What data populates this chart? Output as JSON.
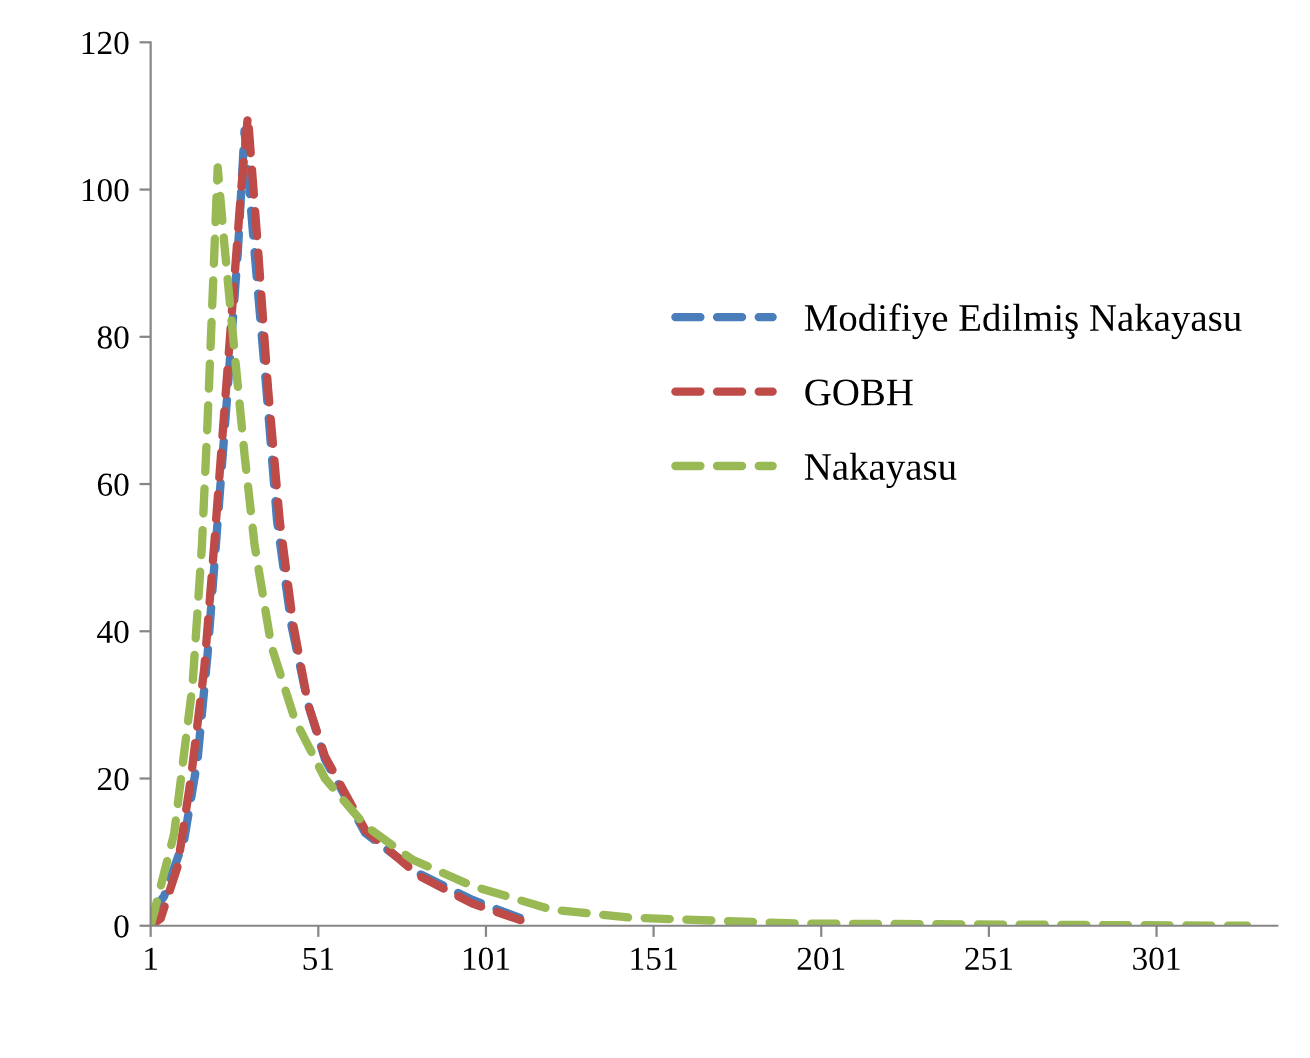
{
  "chart_data": {
    "type": "line",
    "line_style": "dashed",
    "marker": "none",
    "grid": false,
    "legend": "right",
    "xlim": [
      1,
      337
    ],
    "xticks": [
      1,
      51,
      101,
      151,
      201,
      251,
      301
    ],
    "ylim": [
      0,
      120
    ],
    "yticks": [
      0,
      20,
      40,
      60,
      80,
      100,
      120
    ],
    "series": [
      {
        "name": "Modifiye Edilmiş Nakayasu",
        "color": "#4a7ebb",
        "x": [
          1,
          5,
          11,
          15,
          18,
          21,
          24,
          27,
          29,
          32,
          35.5,
          38.7,
          43,
          48,
          53,
          65,
          81,
          97,
          115
        ],
        "values": [
          1.5,
          4,
          11.7,
          22.6,
          37,
          55,
          73,
          91.5,
          108,
          91.5,
          73,
          55,
          40.8,
          30,
          22.6,
          12.6,
          7.1,
          3.5,
          0.4
        ]
      },
      {
        "name": "GOBH",
        "color": "#be4b48",
        "x": [
          1,
          4,
          9,
          13,
          17,
          20,
          23,
          26,
          28,
          30,
          33,
          36,
          39.5,
          43.5,
          48,
          53,
          65,
          81,
          97,
          113
        ],
        "values": [
          0,
          1,
          8,
          20,
          35,
          52,
          70,
          88,
          100,
          110,
          92,
          73,
          55,
          41,
          30,
          23,
          13,
          6.8,
          3,
          0.5
        ]
      },
      {
        "name": "Nakayasu",
        "color": "#98b954",
        "x": [
          1,
          8,
          13.5,
          16.3,
          18,
          19.6,
          21,
          23,
          26,
          29,
          32,
          37,
          44,
          53,
          65,
          79,
          97,
          120.5,
          144,
          194,
          328
        ],
        "values": [
          0,
          12.5,
          32.7,
          51.7,
          68.8,
          87,
          103,
          92.5,
          78,
          64,
          51.7,
          38,
          28,
          20,
          13.6,
          9,
          5.4,
          2.2,
          1.1,
          0.3,
          0
        ]
      }
    ]
  }
}
